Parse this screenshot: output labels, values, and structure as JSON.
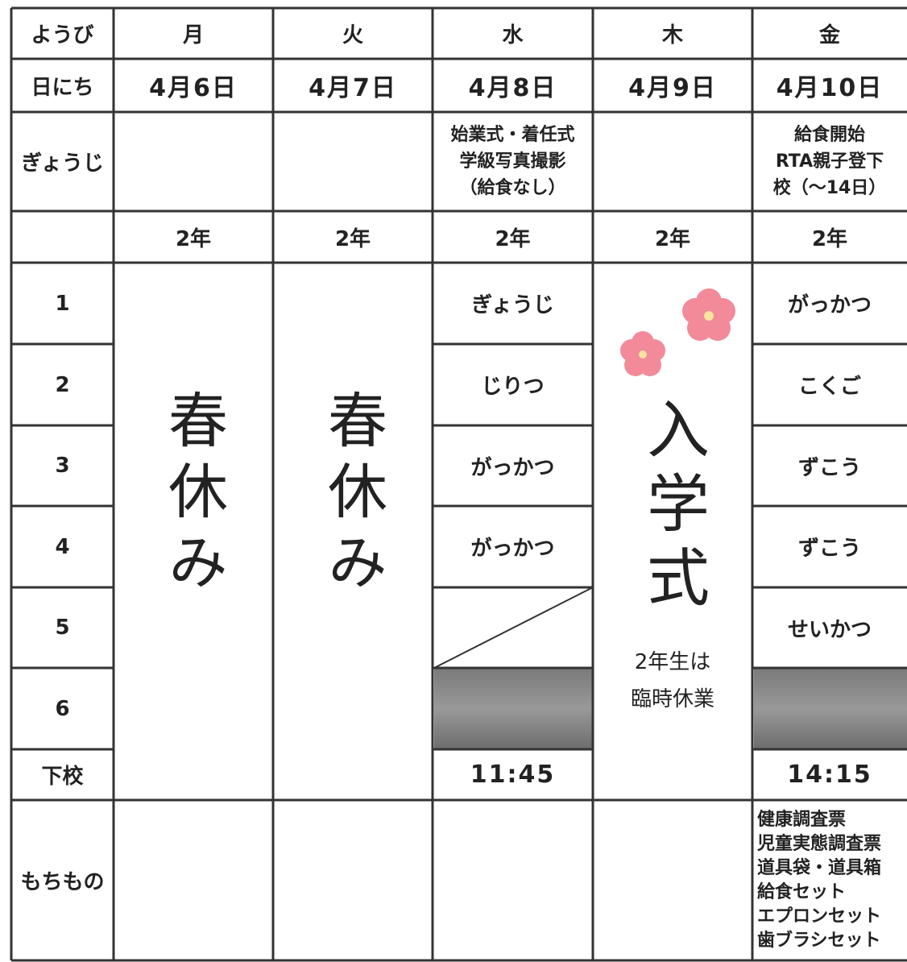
{
  "header": [
    "ようび",
    "月",
    "火",
    "水",
    "木",
    "金"
  ],
  "dates": [
    "日にち",
    "4月6日",
    "4月7日",
    "4月8日",
    "4月9日",
    "4月10日"
  ],
  "events": {
    "label": "ぎょうじ",
    "wed": [
      "始業式・着任式",
      "学級写真撮影",
      "（給食なし）"
    ],
    "fri": [
      "給食開始",
      "RTA親子登下",
      "校（～14日）"
    ]
  },
  "grade": [
    "2年",
    "2年",
    "2年",
    "2年",
    "2年"
  ],
  "periods": [
    "1",
    "2",
    "3",
    "4",
    "5",
    "6"
  ],
  "mon": "春休み",
  "tue": "春休み",
  "wed": [
    "ぎょうじ",
    "じりつ",
    "がっかつ",
    "がっかつ"
  ],
  "thu": {
    "main": "入学式",
    "note": [
      "2年生は",
      "臨時休業"
    ]
  },
  "fri": [
    "がっかつ",
    "こくご",
    "ずこう",
    "ずこう",
    "せいかつ"
  ],
  "dismissal": {
    "label": "下校",
    "wed": "11:45",
    "fri": "14:15"
  },
  "belongings": {
    "label": "もちもの",
    "fri": [
      "健康調査票",
      "児童実態調査票",
      "道具袋・道具箱",
      "給食セット",
      "エプロンセット",
      "歯ブラシセット"
    ]
  }
}
